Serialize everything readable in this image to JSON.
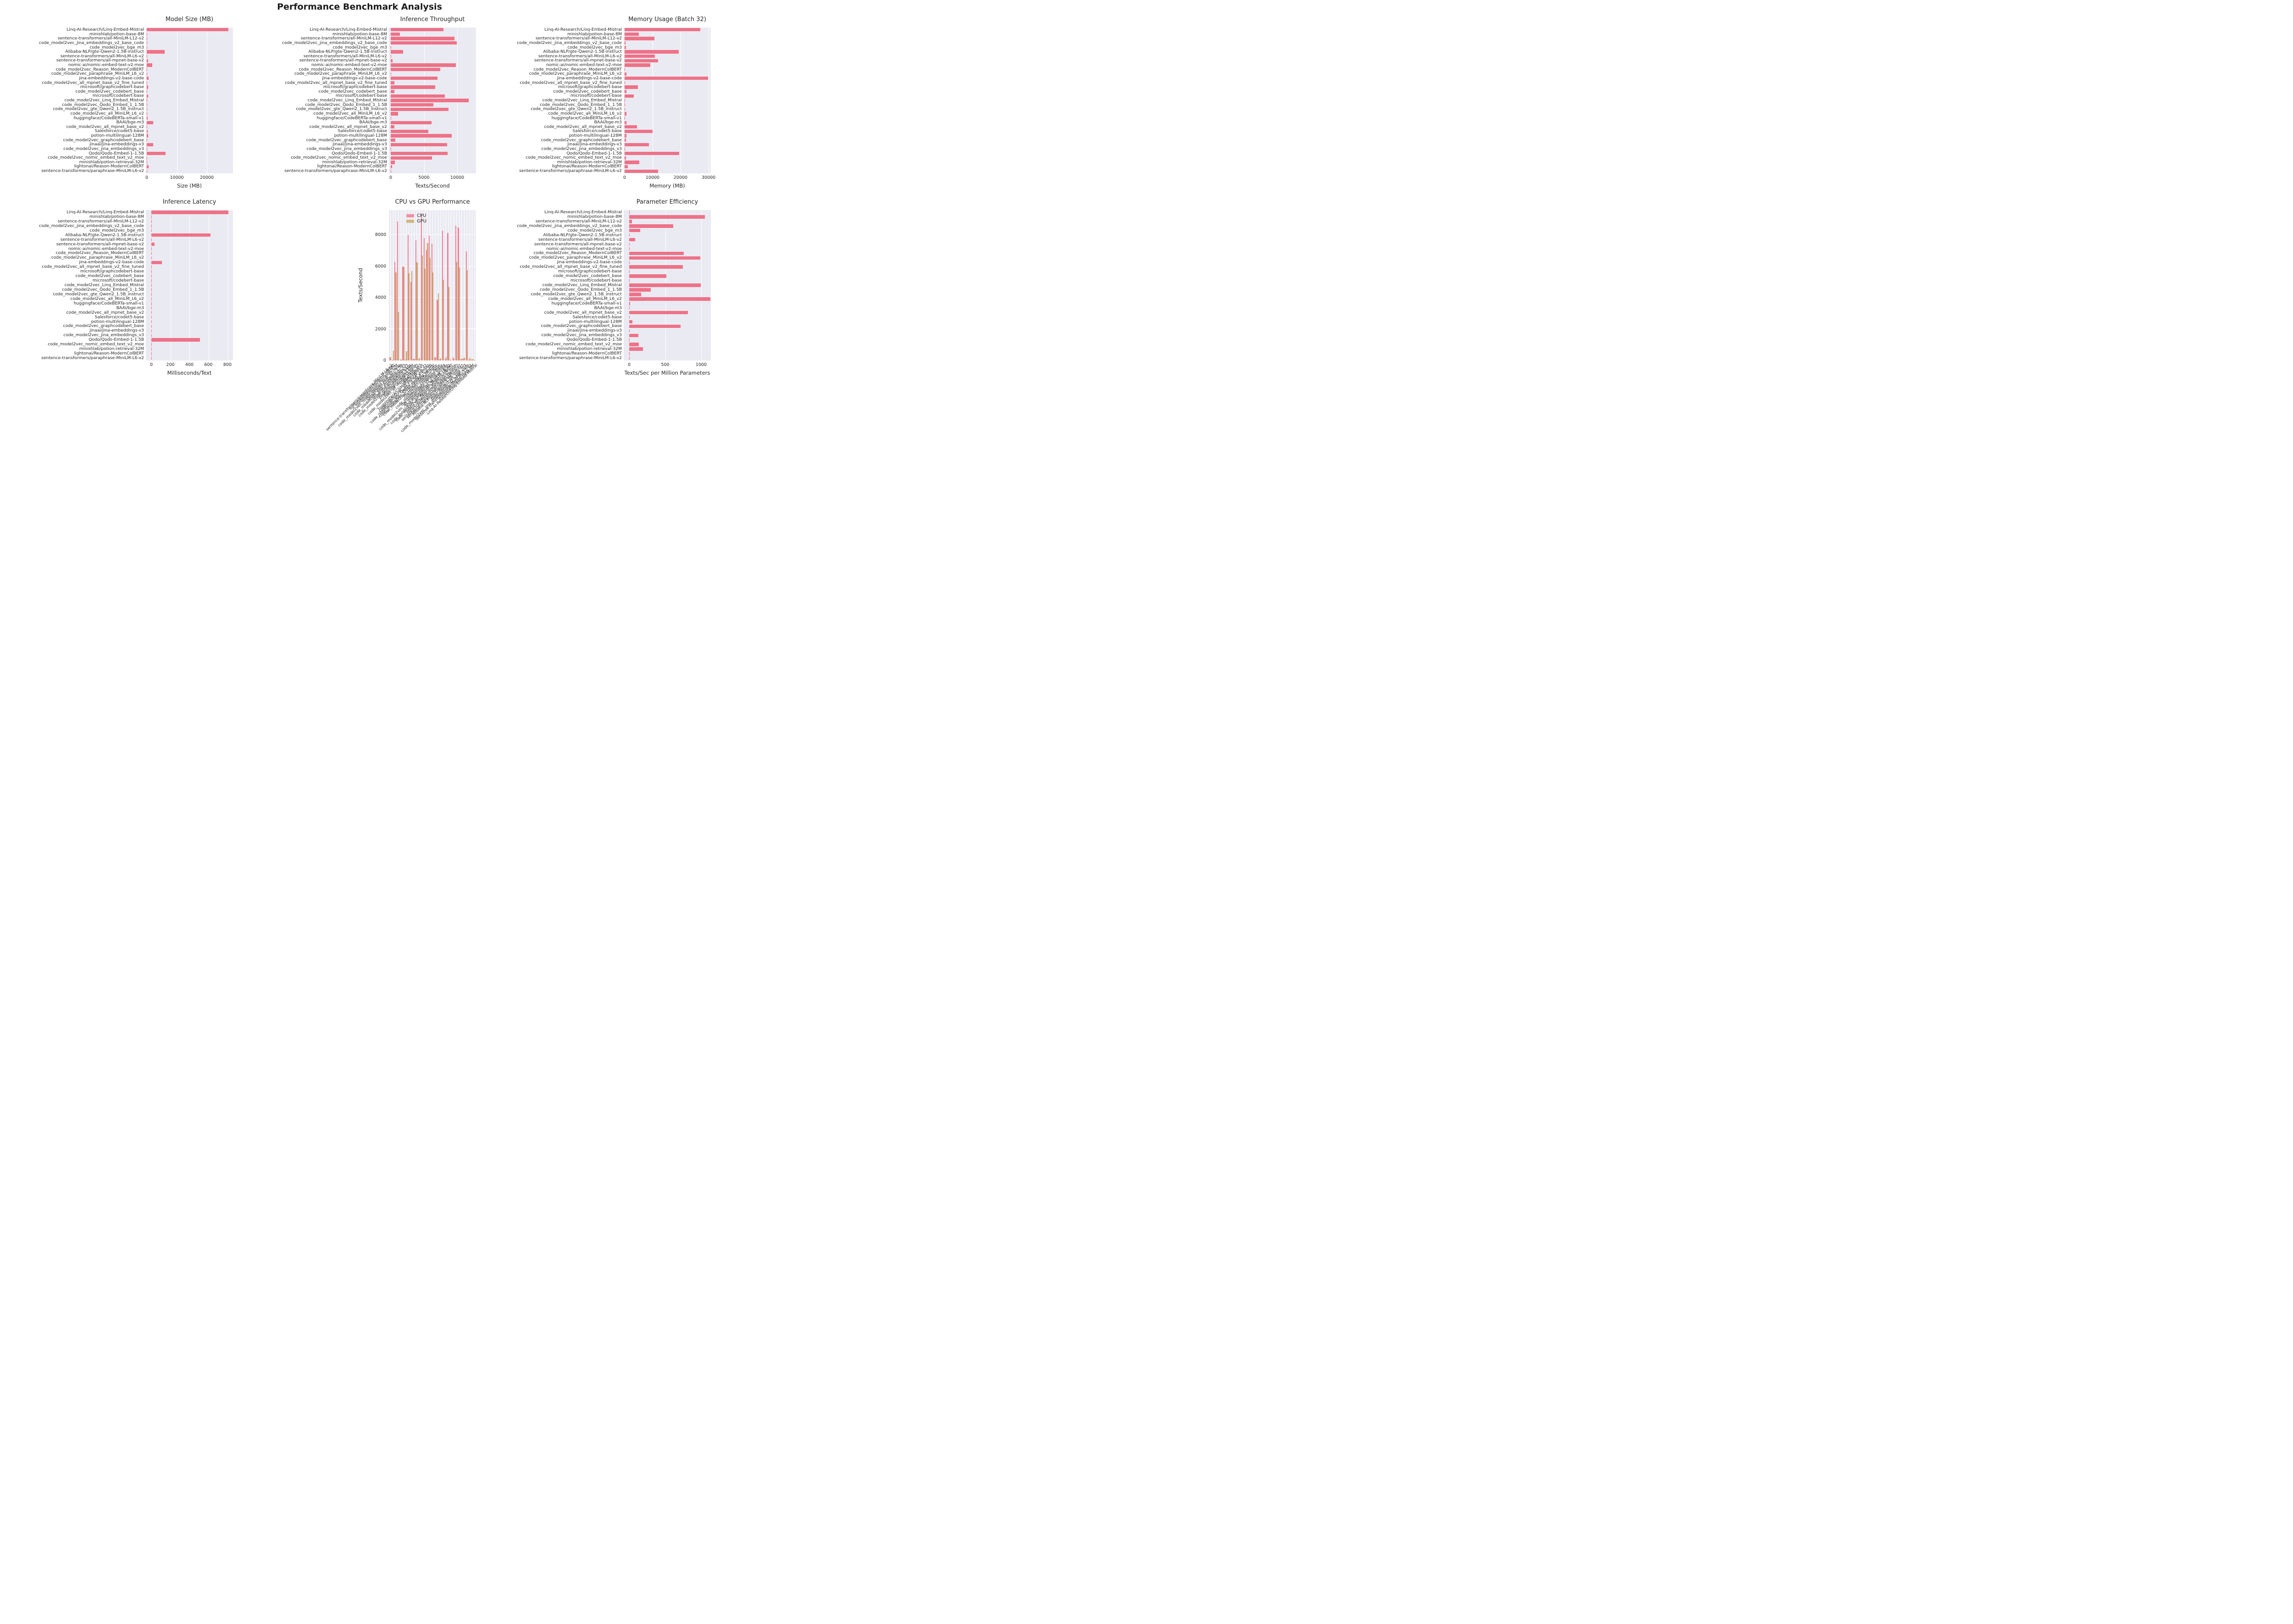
{
  "title": "Performance Benchmark Analysis",
  "models": [
    "Linq-AI-Research/Linq-Embed-Mistral",
    "minishlab/potion-base-8M",
    "sentence-transformers/all-MiniLM-L12-v2",
    "code_model2vec_jina_embeddings_v2_base_code",
    "code_model2vec_bge_m3",
    "Alibaba-NLP/gte-Qwen2-1.5B-instruct",
    "sentence-transformers/all-MiniLM-L6-v2",
    "sentence-transformers/all-mpnet-base-v2",
    "nomic-ai/nomic-embed-text-v2-moe",
    "code_model2vec_Reason_ModernColBERT",
    "code_model2vec_paraphrase_MiniLM_L6_v2",
    "jina-embeddings-v2-base-code",
    "code_model2vec_all_mpnet_base_v2_fine_tuned",
    "microsoft/graphcodebert-base",
    "code_model2vec_codebert_base",
    "microsoft/codebert-base",
    "code_model2vec_Linq_Embed_Mistral",
    "code_model2vec_Qodo_Embed_1_1.5B",
    "code_model2vec_gte_Qwen2_1.5B_instruct",
    "code_model2vec_all_MiniLM_L6_v2",
    "huggingface/CodeBERTa-small-v1",
    "BAAI/bge-m3",
    "code_model2vec_all_mpnet_base_v2",
    "Salesforce/codet5-base",
    "potion-multilingual-128M",
    "code_model2vec_graphcodebert_base",
    "jinaai/jina-embeddings-v3",
    "code_model2vec_jina_embeddings_v3",
    "Qodo/Qodo-Embed-1-1.5B",
    "code_model2vec_nomic_embed_text_v2_moe",
    "minishlab/potion-retrieval-32M",
    "lightonai/Reason-ModernColBERT",
    "sentence-transformers/paraphrase-MiniLM-L6-v2"
  ],
  "colors": {
    "bar_pink": "#ee7288",
    "cpu": "#ee7288",
    "gpu": "#c8a45c",
    "plot_bg": "#eaeaf2",
    "grid": "#ffffff",
    "text": "#262626"
  },
  "chart_data": [
    {
      "id": "model_size",
      "type": "bar",
      "orientation": "horizontal",
      "title": "Model Size (MB)",
      "xlabel": "Size (MB)",
      "xticks": [
        0,
        10000,
        20000
      ],
      "xlim": [
        0,
        28700
      ],
      "categories": "models",
      "values": [
        27100,
        30,
        100,
        15,
        45,
        5900,
        90,
        420,
        1760,
        15,
        15,
        600,
        15,
        490,
        15,
        450,
        15,
        30,
        30,
        15,
        310,
        2120,
        15,
        380,
        490,
        15,
        2160,
        15,
        6300,
        30,
        120,
        560,
        60
      ]
    },
    {
      "id": "throughput",
      "type": "bar",
      "orientation": "horizontal",
      "title": "Inference Throughput",
      "xlabel": "Texts/Second",
      "xticks": [
        0,
        5000,
        10000
      ],
      "xlim": [
        0,
        12800
      ],
      "categories": "models",
      "values": [
        7940,
        1350,
        9570,
        9900,
        20,
        1840,
        60,
        300,
        9820,
        7450,
        30,
        7020,
        540,
        6680,
        540,
        8110,
        11740,
        6410,
        8720,
        1120,
        50,
        6170,
        540,
        5660,
        9160,
        710,
        8450,
        40,
        8550,
        6240,
        640,
        190,
        25
      ]
    },
    {
      "id": "memory",
      "type": "bar",
      "orientation": "horizontal",
      "title": "Memory Usage (Batch 32)",
      "xlabel": "Memory (MB)",
      "xticks": [
        0,
        10000,
        20000,
        30000
      ],
      "xlim": [
        0,
        30800
      ],
      "categories": "models",
      "values": [
        27000,
        5100,
        10600,
        390,
        430,
        19400,
        10900,
        11900,
        9100,
        205,
        730,
        29800,
        70,
        4700,
        730,
        3300,
        160,
        90,
        90,
        680,
        110,
        730,
        4500,
        9950,
        700,
        465,
        8700,
        190,
        19500,
        465,
        5200,
        1100,
        12000
      ]
    },
    {
      "id": "latency",
      "type": "bar",
      "orientation": "horizontal",
      "title": "Inference Latency",
      "xlabel": "Milliseconds/Text",
      "xticks": [
        0,
        200,
        400,
        600,
        800
      ],
      "xlim": [
        0,
        858
      ],
      "categories": "models",
      "values": [
        810,
        1,
        2,
        0.5,
        0.5,
        620,
        2,
        33,
        4,
        0.5,
        0.5,
        110,
        0.5,
        2,
        0.5,
        2,
        0.5,
        0.5,
        0.5,
        0.5,
        1,
        5,
        0.5,
        2,
        0.5,
        0.5,
        2,
        0.5,
        510,
        0.5,
        0.5,
        2,
        5
      ]
    },
    {
      "id": "cpu_gpu",
      "type": "grouped_bar",
      "orientation": "vertical",
      "title": "CPU vs GPU Performance",
      "ylabel": "Texts/Second",
      "yticks": [
        0,
        2000,
        4000,
        6000,
        8000
      ],
      "ylim": [
        0,
        9590
      ],
      "categories": "models",
      "x_order": "reversed",
      "legend": [
        "CPU",
        "GPU"
      ],
      "legend_position": "upper left of plot",
      "series": [
        {
          "name": "CPU",
          "values": [
            20,
            60,
            50,
            6960,
            150,
            80,
            8490,
            8590,
            200,
            50,
            8120,
            80,
            8270,
            100,
            3870,
            200,
            7450,
            7950,
            7050,
            7800,
            9300,
            80,
            7650,
            100,
            5000,
            8000,
            50,
            6000,
            60,
            8850,
            6300,
            30,
            210
          ]
        },
        {
          "name": "GPU",
          "values": [
            40,
            100,
            170,
            5770,
            170,
            120,
            5950,
            6300,
            110,
            30,
            4670,
            220,
            5160,
            150,
            4270,
            200,
            5600,
            6550,
            7500,
            5850,
            6700,
            150,
            6250,
            120,
            5700,
            5550,
            580,
            5970,
            60,
            3100,
            5600,
            620,
            210
          ]
        }
      ]
    },
    {
      "id": "efficiency",
      "type": "bar",
      "orientation": "horizontal",
      "title": "Parameter Efficiency",
      "xlabel": "Texts/Sec per Million Parameters",
      "xticks": [
        0,
        500,
        1000
      ],
      "xlim": [
        0,
        1134
      ],
      "categories": "models",
      "values": [
        1,
        1050,
        40,
        612,
        153,
        1,
        81,
        2,
        2,
        761,
        985,
        4,
        748,
        4,
        517,
        3,
        991,
        302,
        163,
        1160,
        11,
        2,
        818,
        2,
        42,
        712,
        2,
        130,
        4,
        132,
        190,
        3,
        7
      ]
    }
  ]
}
